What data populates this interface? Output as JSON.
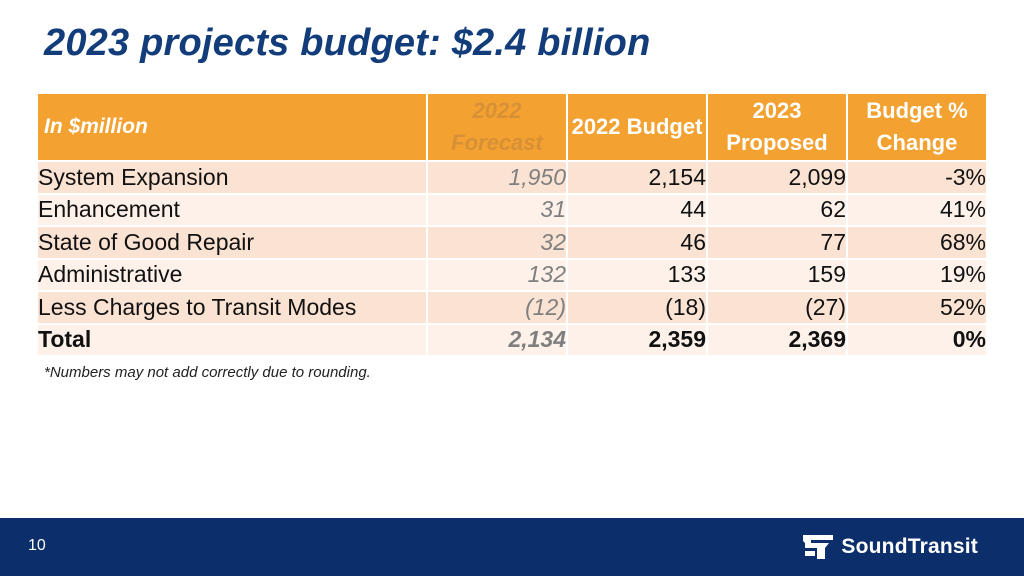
{
  "slide": {
    "title": "2023 projects budget: $2.4 billion",
    "footnote": "*Numbers may not add correctly due to rounding.",
    "page_number": "10"
  },
  "brand": {
    "name": "SoundTransit",
    "primary_color": "#0c2f6b",
    "accent_color": "#f3a131"
  },
  "table": {
    "headers": {
      "label": "In $million",
      "forecast_2022": "2022 Forecast",
      "budget_2022": "2022 Budget",
      "proposed_2023": "2023 Proposed",
      "change_pct": "Budget % Change"
    },
    "rows": [
      {
        "name": "System Expansion",
        "forecast_2022": "1,950",
        "budget_2022": "2,154",
        "proposed_2023": "2,099",
        "change": "-3%"
      },
      {
        "name": "Enhancement",
        "forecast_2022": "31",
        "budget_2022": "44",
        "proposed_2023": "62",
        "change": "41%"
      },
      {
        "name": "State of Good Repair",
        "forecast_2022": "32",
        "budget_2022": "46",
        "proposed_2023": "77",
        "change": "68%"
      },
      {
        "name": "Administrative",
        "forecast_2022": "132",
        "budget_2022": "133",
        "proposed_2023": "159",
        "change": "19%"
      },
      {
        "name": "Less Charges to Transit Modes",
        "forecast_2022": "(12)",
        "budget_2022": "(18)",
        "proposed_2023": "(27)",
        "change": "52%"
      }
    ],
    "total": {
      "name": "Total",
      "forecast_2022": "2,134",
      "budget_2022": "2,359",
      "proposed_2023": "2,369",
      "change": "0%"
    }
  }
}
